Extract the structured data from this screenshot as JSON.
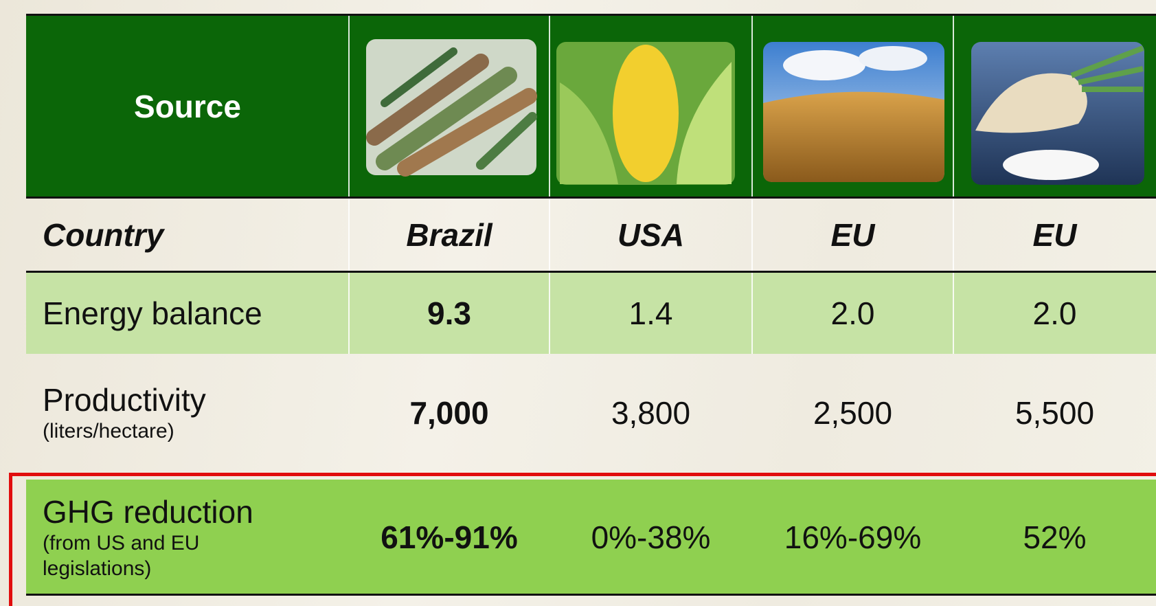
{
  "table": {
    "header": {
      "label": "Source"
    },
    "country": {
      "label": "Country",
      "values": [
        "Brazil",
        "USA",
        "EU",
        "EU"
      ]
    },
    "rows": [
      {
        "label": "Energy balance",
        "values": [
          "9.3",
          "1.4",
          "2.0",
          "2.0"
        ]
      },
      {
        "label": "Productivity",
        "note": "(liters/hectare)",
        "values": [
          "7,000",
          "3,800",
          "2,500",
          "5,500"
        ]
      },
      {
        "label": "GHG reduction",
        "note": "(from US and EU legislations)",
        "values": [
          "61%-91%",
          "0%-38%",
          "16%-69%",
          "52%"
        ]
      }
    ]
  }
}
